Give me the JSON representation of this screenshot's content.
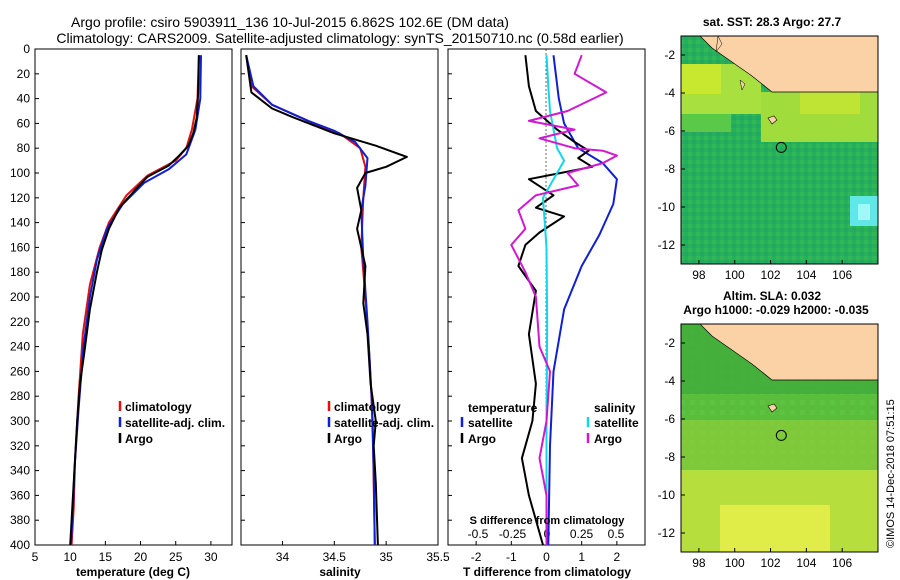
{
  "header": {
    "line1": "Argo profile: csiro 5903911_136 10-Jul-2015 6.862S 102.6E (DM data)",
    "line2": "Climatology: CARS2009. Satellite-adjusted climatology: synTS_20150710.nc (0.58d earlier)"
  },
  "colors": {
    "climatology": "#e01010",
    "satellite": "#1020d0",
    "argo": "#000000",
    "satellite_diff": "#10d8e8",
    "argo_diff": "#d018d0"
  },
  "credit": "©IMOS 14-Dec-2018 07:51:15",
  "chart_data": [
    {
      "type": "line",
      "id": "temperature",
      "xlabel": "temperature (deg C)",
      "xlim": [
        5,
        33
      ],
      "xticks": [
        5,
        10,
        15,
        20,
        25,
        30
      ],
      "ylim": [
        0,
        400
      ],
      "yticks": [
        0,
        20,
        40,
        60,
        80,
        100,
        120,
        140,
        160,
        180,
        200,
        220,
        240,
        260,
        280,
        300,
        320,
        340,
        360,
        380,
        400
      ],
      "legend": [
        "climatology",
        "satellite-adj. clim.",
        "Argo"
      ],
      "series": [
        {
          "name": "climatology",
          "color": "#e01010",
          "points": [
            [
              28.3,
              5
            ],
            [
              28.1,
              40
            ],
            [
              27.3,
              65
            ],
            [
              26.5,
              80
            ],
            [
              25,
              90
            ],
            [
              21,
              102
            ],
            [
              18,
              118
            ],
            [
              15.5,
              140
            ],
            [
              14.2,
              160
            ],
            [
              12.8,
              190
            ],
            [
              11.8,
              230
            ],
            [
              11.2,
              280
            ],
            [
              10.7,
              330
            ],
            [
              10.5,
              370
            ],
            [
              10.2,
              400
            ]
          ]
        },
        {
          "name": "satellite",
          "color": "#1020d0",
          "points": [
            [
              28.6,
              5
            ],
            [
              28.5,
              40
            ],
            [
              27.8,
              65
            ],
            [
              26.5,
              85
            ],
            [
              24,
              97
            ],
            [
              20.5,
              108
            ],
            [
              17.5,
              125
            ],
            [
              15.2,
              145
            ],
            [
              13.8,
              170
            ],
            [
              12.8,
              200
            ],
            [
              11.9,
              240
            ],
            [
              11.2,
              290
            ],
            [
              10.6,
              340
            ],
            [
              10.4,
              370
            ],
            [
              10.1,
              400
            ]
          ]
        },
        {
          "name": "Argo",
          "color": "#000000",
          "points": [
            [
              28.3,
              5
            ],
            [
              28.2,
              35
            ],
            [
              28,
              55
            ],
            [
              27.5,
              68
            ],
            [
              26.8,
              78
            ],
            [
              25.5,
              86
            ],
            [
              24,
              94
            ],
            [
              21,
              103
            ],
            [
              19.5,
              112
            ],
            [
              17,
              128
            ],
            [
              15.5,
              145
            ],
            [
              14.5,
              162
            ],
            [
              13.8,
              180
            ],
            [
              12.8,
              210
            ],
            [
              12,
              245
            ],
            [
              11.4,
              270
            ],
            [
              11,
              300
            ],
            [
              10.7,
              330
            ],
            [
              10.4,
              360
            ],
            [
              10,
              400
            ]
          ]
        }
      ]
    },
    {
      "type": "line",
      "id": "salinity",
      "xlabel": "salinity",
      "xlim": [
        33.6,
        35.5
      ],
      "xticks": [
        34,
        34.5,
        35,
        35.5
      ],
      "ylim": [
        0,
        400
      ],
      "legend": [
        "climatology",
        "satellite-adj. clim.",
        "Argo"
      ],
      "series": [
        {
          "name": "climatology",
          "color": "#e01010",
          "points": [
            [
              33.65,
              5
            ],
            [
              33.7,
              30
            ],
            [
              33.9,
              45
            ],
            [
              34.3,
              60
            ],
            [
              34.55,
              68
            ],
            [
              34.75,
              80
            ],
            [
              34.8,
              95
            ],
            [
              34.78,
              120
            ],
            [
              34.76,
              160
            ],
            [
              34.8,
              200
            ],
            [
              34.84,
              250
            ],
            [
              34.87,
              300
            ],
            [
              34.88,
              350
            ],
            [
              34.89,
              400
            ]
          ]
        },
        {
          "name": "satellite",
          "color": "#1020d0",
          "points": [
            [
              33.65,
              5
            ],
            [
              33.72,
              30
            ],
            [
              33.9,
              45
            ],
            [
              34.25,
              58
            ],
            [
              34.5,
              66
            ],
            [
              34.7,
              75
            ],
            [
              34.82,
              88
            ],
            [
              34.8,
              110
            ],
            [
              34.76,
              130
            ],
            [
              34.78,
              170
            ],
            [
              34.82,
              220
            ],
            [
              34.86,
              280
            ],
            [
              34.88,
              340
            ],
            [
              34.89,
              400
            ]
          ]
        },
        {
          "name": "Argo",
          "color": "#000000",
          "points": [
            [
              33.65,
              5
            ],
            [
              33.7,
              35
            ],
            [
              33.9,
              48
            ],
            [
              34.1,
              55
            ],
            [
              34.5,
              68
            ],
            [
              34.9,
              78
            ],
            [
              35.1,
              84
            ],
            [
              35.2,
              87
            ],
            [
              35.0,
              95
            ],
            [
              34.8,
              100
            ],
            [
              34.72,
              112
            ],
            [
              34.76,
              130
            ],
            [
              34.72,
              145
            ],
            [
              34.8,
              175
            ],
            [
              34.78,
              205
            ],
            [
              34.82,
              230
            ],
            [
              34.85,
              270
            ],
            [
              34.9,
              300
            ],
            [
              34.88,
              320
            ],
            [
              34.9,
              350
            ],
            [
              34.92,
              400
            ]
          ]
        }
      ]
    },
    {
      "type": "line",
      "id": "difference",
      "xlabel": "T difference from climatology",
      "xlabel_top": "S difference  from climatology",
      "xlim": [
        -2.8,
        2.8
      ],
      "xticks": [
        -2,
        -1,
        0,
        1,
        2
      ],
      "xticks_top": [
        -0.5,
        -0.25,
        0,
        0.25,
        0.5
      ],
      "xticklabels_top": [
        "-0.5",
        "-0.25",
        "0",
        "0.25",
        "0.5"
      ],
      "ylim": [
        0,
        400
      ],
      "legend_temperature": {
        "title": "temperature",
        "entries": [
          "satellite",
          "Argo"
        ]
      },
      "legend_salinity": {
        "title": "salinity",
        "entries": [
          "satellite",
          "Argo"
        ]
      },
      "series": [
        {
          "name": "temperature satellite",
          "color": "#1020d0",
          "points": [
            [
              0.2,
              5
            ],
            [
              0.35,
              40
            ],
            [
              0.5,
              60
            ],
            [
              0.9,
              80
            ],
            [
              1.6,
              92
            ],
            [
              2.0,
              105
            ],
            [
              1.9,
              125
            ],
            [
              1.5,
              150
            ],
            [
              1.0,
              175
            ],
            [
              0.5,
              210
            ],
            [
              0.2,
              260
            ],
            [
              0.1,
              320
            ],
            [
              0.05,
              400
            ]
          ]
        },
        {
          "name": "temperature Argo",
          "color": "#000000",
          "points": [
            [
              -0.6,
              5
            ],
            [
              -0.5,
              30
            ],
            [
              -0.3,
              50
            ],
            [
              0.3,
              65
            ],
            [
              0.8,
              75
            ],
            [
              1.2,
              82
            ],
            [
              0.9,
              88
            ],
            [
              1.3,
              95
            ],
            [
              0.4,
              100
            ],
            [
              -0.5,
              105
            ],
            [
              0.2,
              118
            ],
            [
              -0.3,
              128
            ],
            [
              0.5,
              135
            ],
            [
              -0.2,
              148
            ],
            [
              -0.6,
              158
            ],
            [
              -0.8,
              175
            ],
            [
              -0.3,
              195
            ],
            [
              -0.5,
              230
            ],
            [
              -0.3,
              270
            ],
            [
              -0.4,
              300
            ],
            [
              -0.7,
              330
            ],
            [
              -0.5,
              360
            ],
            [
              -0.1,
              400
            ]
          ]
        },
        {
          "name": "salinity satellite",
          "color": "#10d8e8",
          "points": [
            [
              0.0,
              5
            ],
            [
              0.05,
              30
            ],
            [
              0.1,
              50
            ],
            [
              0.3,
              80
            ],
            [
              0.5,
              90
            ],
            [
              0.3,
              100
            ],
            [
              -0.1,
              120
            ],
            [
              0.0,
              160
            ],
            [
              0.02,
              220
            ],
            [
              0.0,
              300
            ],
            [
              0.0,
              400
            ]
          ]
        },
        {
          "name": "salinity Argo",
          "color": "#d018d0",
          "points": [
            [
              1.0,
              5
            ],
            [
              0.8,
              20
            ],
            [
              1.7,
              35
            ],
            [
              0.6,
              50
            ],
            [
              -0.5,
              58
            ],
            [
              0.8,
              65
            ],
            [
              -0.2,
              72
            ],
            [
              0.8,
              80
            ],
            [
              1.6,
              82
            ],
            [
              2.0,
              86
            ],
            [
              1.6,
              92
            ],
            [
              0.6,
              100
            ],
            [
              0.9,
              110
            ],
            [
              -0.3,
              118
            ],
            [
              -0.8,
              130
            ],
            [
              -0.6,
              145
            ],
            [
              -1.0,
              158
            ],
            [
              -0.6,
              180
            ],
            [
              -0.3,
              200
            ],
            [
              -0.2,
              240
            ],
            [
              0.1,
              260
            ],
            [
              0.0,
              300
            ],
            [
              -0.2,
              330
            ],
            [
              0.0,
              360
            ],
            [
              0.0,
              400
            ]
          ]
        }
      ]
    },
    {
      "type": "heatmap",
      "id": "sst-map",
      "title": "sat. SST: 28.3 Argo: 27.7",
      "xticks": [
        98,
        100,
        102,
        104,
        106
      ],
      "xlim": [
        97,
        108
      ],
      "yticks": [
        -2,
        -4,
        -6,
        -8,
        -10,
        -12
      ],
      "ylim": [
        -13,
        -1
      ],
      "argo_location": [
        102.6,
        -6.862
      ]
    },
    {
      "type": "heatmap",
      "id": "sla-map",
      "title": "Altim. SLA: 0.032",
      "subtitle": "Argo h1000: -0.029 h2000: -0.035",
      "xticks": [
        98,
        100,
        102,
        104,
        106
      ],
      "xlim": [
        97,
        108
      ],
      "yticks": [
        -2,
        -4,
        -6,
        -8,
        -10,
        -12
      ],
      "ylim": [
        -13,
        -1
      ],
      "argo_location": [
        102.6,
        -6.862
      ]
    }
  ]
}
